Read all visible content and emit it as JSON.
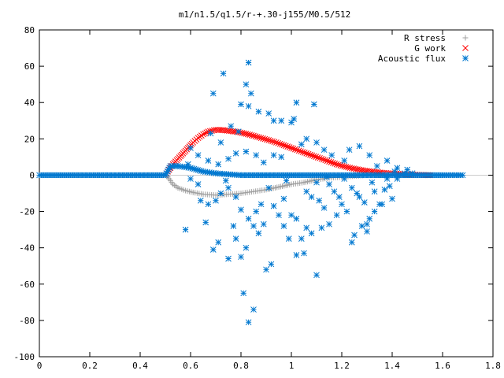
{
  "chart_data": {
    "type": "scatter",
    "title": "m1/n1.5/q1.5/r-+.30-j155/M0.5/512",
    "xlabel": "",
    "ylabel": "",
    "xlim": [
      0,
      1.8
    ],
    "ylim": [
      -100,
      80
    ],
    "xticks": [
      0,
      0.2,
      0.4,
      0.6,
      0.8,
      1,
      1.2,
      1.4,
      1.6,
      1.8
    ],
    "xtick_labels": [
      "0",
      "0.2",
      "0.4",
      "0.6",
      "0.8",
      "1",
      "1.2",
      "1.4",
      "1.6",
      "1.8"
    ],
    "yticks": [
      -100,
      -80,
      -60,
      -40,
      -20,
      0,
      20,
      40,
      60,
      80
    ],
    "ytick_labels": [
      "-100",
      "-80",
      "-60",
      "-40",
      "-20",
      "0",
      "20",
      "40",
      "60",
      "80"
    ],
    "grid": false,
    "legend_position": "top-right",
    "series": [
      {
        "name": "R stress",
        "marker": "plus",
        "color": "#a0a0a0",
        "points": [
          [
            0.0,
            0
          ],
          [
            0.1,
            0
          ],
          [
            0.2,
            0
          ],
          [
            0.3,
            0
          ],
          [
            0.4,
            0
          ],
          [
            0.5,
            0
          ],
          [
            0.51,
            -1
          ],
          [
            0.52,
            -3
          ],
          [
            0.53,
            -5
          ],
          [
            0.55,
            -7
          ],
          [
            0.58,
            -8.5
          ],
          [
            0.61,
            -9.5
          ],
          [
            0.65,
            -10.5
          ],
          [
            0.7,
            -11
          ],
          [
            0.75,
            -10.5
          ],
          [
            0.8,
            -10
          ],
          [
            0.85,
            -9
          ],
          [
            0.9,
            -8
          ],
          [
            0.95,
            -6.5
          ],
          [
            1.0,
            -5
          ],
          [
            1.05,
            -4
          ],
          [
            1.1,
            -2.5
          ],
          [
            1.15,
            -1.5
          ],
          [
            1.2,
            -1
          ],
          [
            1.25,
            -0.5
          ],
          [
            1.3,
            0
          ],
          [
            1.35,
            0
          ],
          [
            1.4,
            0
          ],
          [
            1.45,
            0
          ],
          [
            1.5,
            0
          ],
          [
            1.55,
            0
          ]
        ]
      },
      {
        "name": "G work",
        "marker": "cross",
        "color": "#ff0000",
        "points": [
          [
            0.5,
            0
          ],
          [
            0.51,
            2
          ],
          [
            0.52,
            4
          ],
          [
            0.53,
            6
          ],
          [
            0.55,
            9
          ],
          [
            0.57,
            12
          ],
          [
            0.59,
            15
          ],
          [
            0.61,
            18
          ],
          [
            0.63,
            20.5
          ],
          [
            0.65,
            22.5
          ],
          [
            0.67,
            24
          ],
          [
            0.7,
            25
          ],
          [
            0.73,
            24.8
          ],
          [
            0.76,
            24.3
          ],
          [
            0.79,
            23.7
          ],
          [
            0.82,
            22.8
          ],
          [
            0.85,
            21.7
          ],
          [
            0.88,
            20.5
          ],
          [
            0.91,
            19.3
          ],
          [
            0.94,
            18
          ],
          [
            0.97,
            16.5
          ],
          [
            1.0,
            15
          ],
          [
            1.03,
            13.5
          ],
          [
            1.06,
            12
          ],
          [
            1.09,
            10.5
          ],
          [
            1.12,
            9
          ],
          [
            1.15,
            7.5
          ],
          [
            1.18,
            6
          ],
          [
            1.21,
            4.8
          ],
          [
            1.24,
            3.8
          ],
          [
            1.27,
            3
          ],
          [
            1.3,
            2.3
          ],
          [
            1.33,
            1.8
          ],
          [
            1.36,
            1.3
          ],
          [
            1.4,
            0.9
          ],
          [
            1.45,
            0.5
          ],
          [
            1.5,
            0.2
          ],
          [
            1.55,
            0
          ]
        ]
      },
      {
        "name": "Acoustic flux",
        "marker": "star",
        "color": "#0078d0",
        "line": [
          [
            0.0,
            0
          ],
          [
            0.1,
            0
          ],
          [
            0.2,
            0
          ],
          [
            0.3,
            0
          ],
          [
            0.4,
            0
          ],
          [
            0.5,
            0
          ],
          [
            0.52,
            5
          ],
          [
            0.55,
            5
          ],
          [
            0.6,
            4
          ],
          [
            0.65,
            2
          ],
          [
            0.7,
            1
          ],
          [
            0.75,
            0.5
          ],
          [
            0.8,
            0
          ],
          [
            1.0,
            0
          ],
          [
            1.2,
            0
          ],
          [
            1.4,
            0
          ],
          [
            1.5,
            0
          ],
          [
            1.6,
            0
          ],
          [
            1.68,
            0
          ]
        ],
        "points": [
          [
            0.69,
            45
          ],
          [
            0.73,
            56
          ],
          [
            0.83,
            62
          ],
          [
            0.82,
            50
          ],
          [
            0.84,
            45
          ],
          [
            0.8,
            39
          ],
          [
            0.83,
            38
          ],
          [
            0.87,
            35
          ],
          [
            0.91,
            34
          ],
          [
            0.93,
            30
          ],
          [
            0.96,
            30
          ],
          [
            1.0,
            29
          ],
          [
            1.01,
            31
          ],
          [
            1.02,
            40
          ],
          [
            1.09,
            39
          ],
          [
            0.79,
            24
          ],
          [
            0.76,
            27
          ],
          [
            0.68,
            23
          ],
          [
            0.72,
            18
          ],
          [
            0.6,
            15
          ],
          [
            0.63,
            11
          ],
          [
            0.59,
            6
          ],
          [
            0.67,
            8
          ],
          [
            0.71,
            6
          ],
          [
            0.75,
            9
          ],
          [
            0.78,
            12
          ],
          [
            0.82,
            13
          ],
          [
            0.86,
            11
          ],
          [
            0.89,
            7
          ],
          [
            0.93,
            11
          ],
          [
            0.96,
            10
          ],
          [
            1.04,
            17
          ],
          [
            1.06,
            20
          ],
          [
            1.1,
            18
          ],
          [
            1.13,
            14
          ],
          [
            1.16,
            11
          ],
          [
            1.21,
            8
          ],
          [
            1.23,
            14
          ],
          [
            1.27,
            16
          ],
          [
            1.31,
            11
          ],
          [
            1.34,
            5
          ],
          [
            1.38,
            8
          ],
          [
            1.41,
            2
          ],
          [
            1.45,
            1
          ],
          [
            0.6,
            -2
          ],
          [
            0.63,
            -5
          ],
          [
            0.67,
            -16
          ],
          [
            0.7,
            -14
          ],
          [
            0.72,
            -10
          ],
          [
            0.75,
            -7
          ],
          [
            0.78,
            -12
          ],
          [
            0.8,
            -19
          ],
          [
            0.83,
            -24
          ],
          [
            0.85,
            -28
          ],
          [
            0.87,
            -32
          ],
          [
            0.89,
            -27
          ],
          [
            0.93,
            -17
          ],
          [
            0.95,
            -22
          ],
          [
            0.97,
            -28
          ],
          [
            0.99,
            -35
          ],
          [
            1.02,
            -24
          ],
          [
            1.04,
            -35
          ],
          [
            1.06,
            -29
          ],
          [
            1.08,
            -32
          ],
          [
            1.11,
            -14
          ],
          [
            1.13,
            -18
          ],
          [
            1.15,
            -5
          ],
          [
            1.17,
            -9
          ],
          [
            1.19,
            -12
          ],
          [
            1.21,
            -2
          ],
          [
            1.24,
            -7
          ],
          [
            1.27,
            -12
          ],
          [
            1.29,
            -15
          ],
          [
            1.32,
            -4
          ],
          [
            1.35,
            -16
          ],
          [
            1.37,
            -8
          ],
          [
            1.39,
            -6
          ],
          [
            1.42,
            -2
          ],
          [
            0.69,
            -41
          ],
          [
            0.71,
            -37
          ],
          [
            0.75,
            -46
          ],
          [
            0.77,
            -28
          ],
          [
            0.78,
            -35
          ],
          [
            0.8,
            -45
          ],
          [
            0.82,
            -40
          ],
          [
            0.9,
            -52
          ],
          [
            0.92,
            -49
          ],
          [
            1.02,
            -44
          ],
          [
            1.05,
            -43
          ],
          [
            1.1,
            -55
          ],
          [
            0.81,
            -65
          ],
          [
            0.85,
            -74
          ],
          [
            0.83,
            -81
          ],
          [
            1.28,
            -28
          ],
          [
            1.31,
            -24
          ],
          [
            1.25,
            -33
          ],
          [
            1.18,
            -22
          ],
          [
            1.22,
            -20
          ],
          [
            1.3,
            -27
          ],
          [
            1.33,
            -20
          ],
          [
            1.36,
            -16
          ],
          [
            1.4,
            -13
          ],
          [
            1.15,
            -27
          ],
          [
            0.97,
            -13
          ],
          [
            0.91,
            -7
          ],
          [
            0.88,
            -16
          ],
          [
            0.98,
            -3
          ],
          [
            1.06,
            -9
          ],
          [
            1.1,
            -4
          ],
          [
            1.14,
            -1
          ],
          [
            1.2,
            -16
          ],
          [
            1.26,
            -10
          ],
          [
            1.33,
            -9
          ],
          [
            1.38,
            -2
          ],
          [
            1.42,
            4
          ],
          [
            1.46,
            3
          ],
          [
            1.48,
            1
          ],
          [
            0.58,
            -30
          ],
          [
            0.66,
            -26
          ],
          [
            0.64,
            -14
          ],
          [
            0.74,
            -3
          ],
          [
            0.86,
            -20
          ],
          [
            1.0,
            -22
          ],
          [
            1.08,
            -12
          ],
          [
            1.12,
            -29
          ],
          [
            1.24,
            -37
          ],
          [
            1.3,
            -31
          ]
        ]
      }
    ]
  }
}
